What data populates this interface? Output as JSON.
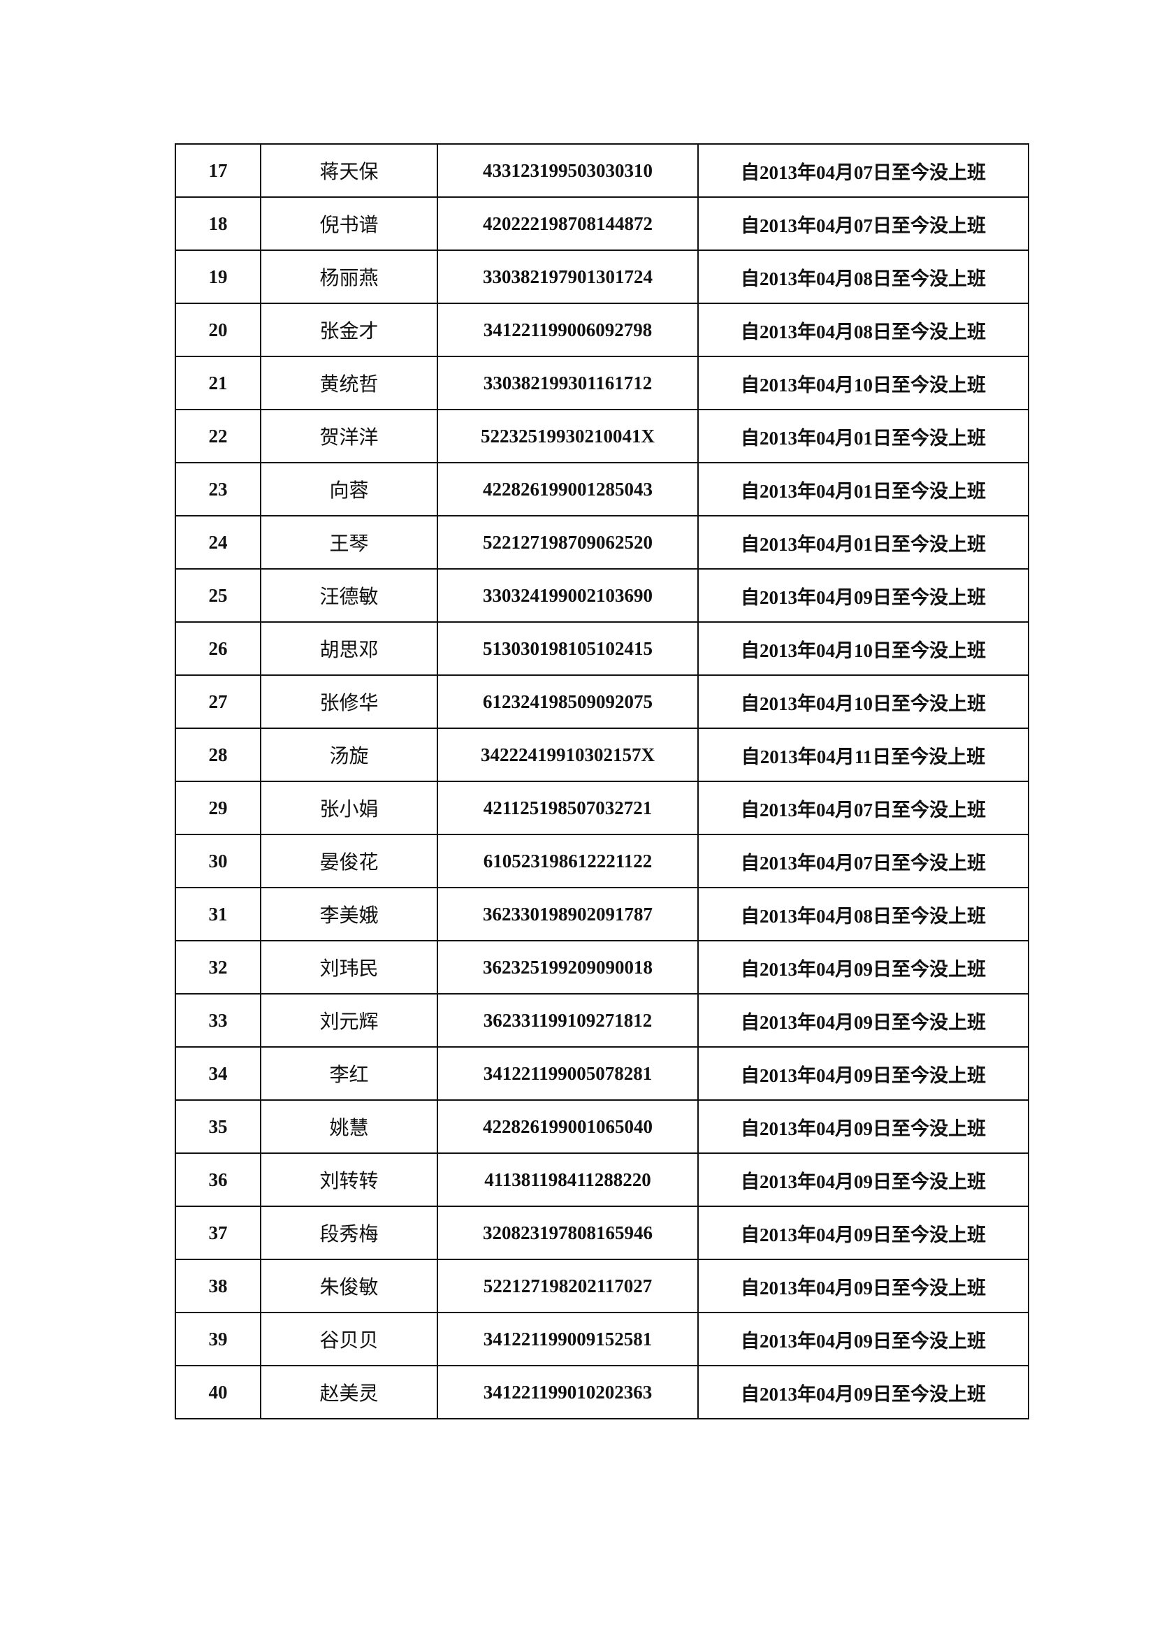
{
  "table": {
    "rows": [
      [
        "17",
        "蒋天保",
        "433123199503030310",
        "自2013年04月07日至今没上班"
      ],
      [
        "18",
        "倪书谱",
        "420222198708144872",
        "自2013年04月07日至今没上班"
      ],
      [
        "19",
        "杨丽燕",
        "330382197901301724",
        "自2013年04月08日至今没上班"
      ],
      [
        "20",
        "张金才",
        "341221199006092798",
        "自2013年04月08日至今没上班"
      ],
      [
        "21",
        "黄统哲",
        "330382199301161712",
        "自2013年04月10日至今没上班"
      ],
      [
        "22",
        "贺洋洋",
        "52232519930210041X",
        "自2013年04月01日至今没上班"
      ],
      [
        "23",
        "向蓉",
        "422826199001285043",
        "自2013年04月01日至今没上班"
      ],
      [
        "24",
        "王琴",
        "522127198709062520",
        "自2013年04月01日至今没上班"
      ],
      [
        "25",
        "汪德敏",
        "330324199002103690",
        "自2013年04月09日至今没上班"
      ],
      [
        "26",
        "胡思邓",
        "513030198105102415",
        "自2013年04月10日至今没上班"
      ],
      [
        "27",
        "张修华",
        "612324198509092075",
        "自2013年04月10日至今没上班"
      ],
      [
        "28",
        "汤旋",
        "34222419910302157X",
        "自2013年04月11日至今没上班"
      ],
      [
        "29",
        "张小娟",
        "421125198507032721",
        "自2013年04月07日至今没上班"
      ],
      [
        "30",
        "晏俊花",
        "610523198612221122",
        "自2013年04月07日至今没上班"
      ],
      [
        "31",
        "李美娥",
        "362330198902091787",
        "自2013年04月08日至今没上班"
      ],
      [
        "32",
        "刘玮民",
        "362325199209090018",
        "自2013年04月09日至今没上班"
      ],
      [
        "33",
        "刘元辉",
        "362331199109271812",
        "自2013年04月09日至今没上班"
      ],
      [
        "34",
        "李红",
        "341221199005078281",
        "自2013年04月09日至今没上班"
      ],
      [
        "35",
        "姚慧",
        "422826199001065040",
        "自2013年04月09日至今没上班"
      ],
      [
        "36",
        "刘转转",
        "411381198411288220",
        "自2013年04月09日至今没上班"
      ],
      [
        "37",
        "段秀梅",
        "320823197808165946",
        "自2013年04月09日至今没上班"
      ],
      [
        "38",
        "朱俊敏",
        "522127198202117027",
        "自2013年04月09日至今没上班"
      ],
      [
        "39",
        "谷贝贝",
        "341221199009152581",
        "自2013年04月09日至今没上班"
      ],
      [
        "40",
        "赵美灵",
        "341221199010202363",
        "自2013年04月09日至今没上班"
      ]
    ]
  }
}
